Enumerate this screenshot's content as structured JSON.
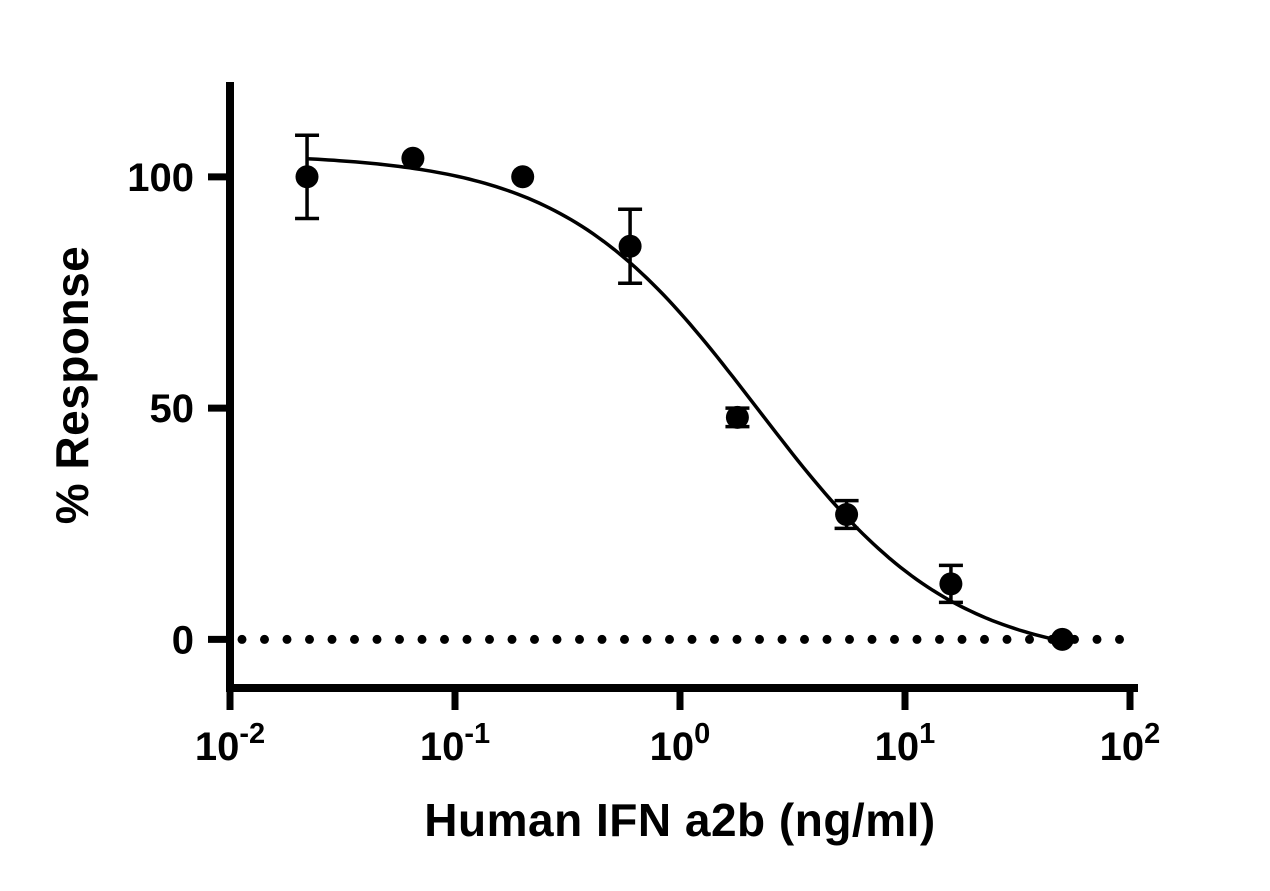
{
  "chart_data": {
    "type": "scatter",
    "title": "",
    "xlabel": "Human IFN a2b (ng/ml)",
    "ylabel": "% Response",
    "x_scale": "log10",
    "x_log_range": [
      -2,
      2
    ],
    "ylim": [
      -10.5,
      120.5
    ],
    "grid": false,
    "legend": null,
    "x_ticks": [
      {
        "value": 0.01,
        "base": "10",
        "exp": "-2"
      },
      {
        "value": 0.1,
        "base": "10",
        "exp": "-1"
      },
      {
        "value": 1,
        "base": "10",
        "exp": "0"
      },
      {
        "value": 10,
        "base": "10",
        "exp": "1"
      },
      {
        "value": 100,
        "base": "10",
        "exp": "2"
      }
    ],
    "y_ticks": [
      {
        "value": 0,
        "label": "0"
      },
      {
        "value": 50,
        "label": "50"
      },
      {
        "value": 100,
        "label": "100"
      }
    ],
    "baseline": {
      "y": 0,
      "style": "dotted"
    },
    "points": [
      {
        "x": 0.022,
        "y": 100,
        "err": 9
      },
      {
        "x": 0.065,
        "y": 104,
        "err": 0
      },
      {
        "x": 0.2,
        "y": 100,
        "err": 0
      },
      {
        "x": 0.6,
        "y": 85,
        "err": 8
      },
      {
        "x": 1.8,
        "y": 48,
        "err": 2
      },
      {
        "x": 5.5,
        "y": 27,
        "err": 3
      },
      {
        "x": 16,
        "y": 12,
        "err": 4
      },
      {
        "x": 50,
        "y": 0,
        "err": 0
      }
    ],
    "fit": {
      "model": "four-parameter-logistic",
      "top": 105,
      "bottom": -5,
      "ic50": 2.2,
      "hill": 1.0
    },
    "colors": {
      "marker": "#000000",
      "curve": "#000000",
      "axis": "#000000",
      "background": "#ffffff"
    }
  }
}
